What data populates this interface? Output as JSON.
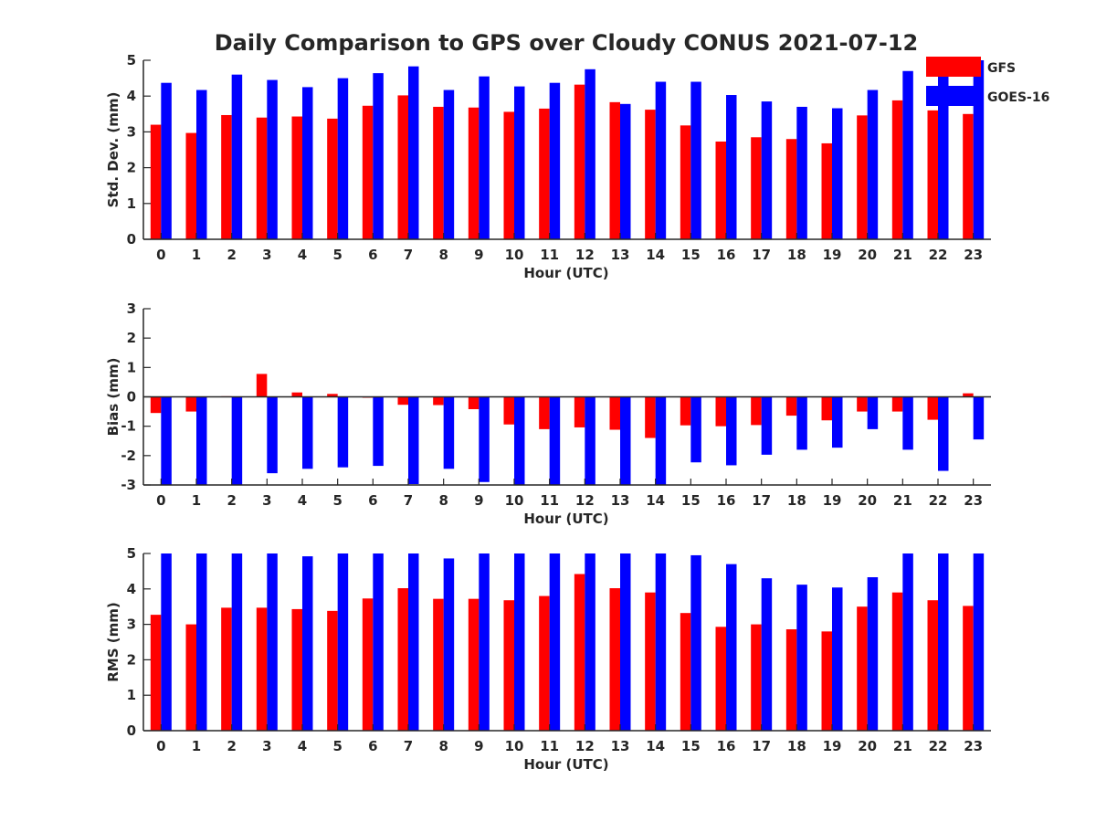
{
  "title": "Daily Comparison to GPS over Cloudy CONUS 2021-07-12",
  "colors": {
    "GFS": "#ff0000",
    "GOES-16": "#0000ff",
    "axis": "#262626"
  },
  "legend": {
    "placement": "top-right",
    "entries": [
      "GFS",
      "GOES-16"
    ]
  },
  "chart_data": [
    {
      "type": "bar",
      "ylabel": "Std. Dev. (mm)",
      "xlabel": "Hour (UTC)",
      "ylim": [
        0,
        5
      ],
      "yticks": [
        "0",
        "1",
        "2",
        "3",
        "4",
        "5"
      ],
      "categories": [
        "0",
        "1",
        "2",
        "3",
        "4",
        "5",
        "6",
        "7",
        "8",
        "9",
        "10",
        "11",
        "12",
        "13",
        "14",
        "15",
        "16",
        "17",
        "18",
        "19",
        "20",
        "21",
        "22",
        "23"
      ],
      "series": [
        {
          "name": "GFS",
          "values": [
            3.2,
            2.97,
            3.47,
            3.4,
            3.43,
            3.37,
            3.73,
            4.02,
            3.7,
            3.68,
            3.56,
            3.65,
            4.32,
            3.83,
            3.62,
            3.18,
            2.73,
            2.85,
            2.8,
            2.68,
            3.46,
            3.88,
            3.6,
            3.5
          ]
        },
        {
          "name": "GOES-16",
          "values": [
            4.37,
            4.17,
            4.6,
            4.45,
            4.25,
            4.5,
            4.64,
            4.83,
            4.17,
            4.55,
            4.27,
            4.37,
            4.75,
            3.78,
            4.4,
            4.4,
            4.03,
            3.85,
            3.7,
            3.66,
            4.17,
            4.7,
            5.0,
            5.0
          ]
        }
      ]
    },
    {
      "type": "bar",
      "ylabel": "Bias (mm)",
      "xlabel": "Hour (UTC)",
      "ylim": [
        -3,
        3
      ],
      "yticks": [
        "-3",
        "-2",
        "-1",
        "0",
        "1",
        "2",
        "3"
      ],
      "categories": [
        "0",
        "1",
        "2",
        "3",
        "4",
        "5",
        "6",
        "7",
        "8",
        "9",
        "10",
        "11",
        "12",
        "13",
        "14",
        "15",
        "16",
        "17",
        "18",
        "19",
        "20",
        "21",
        "22",
        "23"
      ],
      "series": [
        {
          "name": "GFS",
          "values": [
            -0.55,
            -0.5,
            0.02,
            0.78,
            0.15,
            0.1,
            -0.03,
            -0.27,
            -0.28,
            -0.42,
            -0.94,
            -1.1,
            -1.04,
            -1.12,
            -1.4,
            -0.97,
            -1.0,
            -0.96,
            -0.64,
            -0.8,
            -0.5,
            -0.5,
            -0.78,
            0.12
          ]
        },
        {
          "name": "GOES-16",
          "values": [
            -3.0,
            -3.0,
            -3.0,
            -2.6,
            -2.45,
            -2.4,
            -2.35,
            -2.97,
            -2.45,
            -2.9,
            -3.0,
            -3.0,
            -3.0,
            -3.0,
            -3.0,
            -2.23,
            -2.33,
            -1.97,
            -1.8,
            -1.73,
            -1.1,
            -1.8,
            -2.52,
            -1.45
          ]
        }
      ]
    },
    {
      "type": "bar",
      "ylabel": "RMS (mm)",
      "xlabel": "Hour (UTC)",
      "ylim": [
        0,
        5
      ],
      "yticks": [
        "0",
        "1",
        "2",
        "3",
        "4",
        "5"
      ],
      "categories": [
        "0",
        "1",
        "2",
        "3",
        "4",
        "5",
        "6",
        "7",
        "8",
        "9",
        "10",
        "11",
        "12",
        "13",
        "14",
        "15",
        "16",
        "17",
        "18",
        "19",
        "20",
        "21",
        "22",
        "23"
      ],
      "series": [
        {
          "name": "GFS",
          "values": [
            3.27,
            3.0,
            3.47,
            3.47,
            3.43,
            3.38,
            3.73,
            4.02,
            3.72,
            3.72,
            3.68,
            3.8,
            4.42,
            4.02,
            3.9,
            3.32,
            2.93,
            3.0,
            2.86,
            2.8,
            3.5,
            3.9,
            3.68,
            3.52
          ]
        },
        {
          "name": "GOES-16",
          "values": [
            5.0,
            5.0,
            5.0,
            5.0,
            4.92,
            5.0,
            5.0,
            5.0,
            4.86,
            5.0,
            5.0,
            5.0,
            5.0,
            5.0,
            5.0,
            4.95,
            4.7,
            4.3,
            4.12,
            4.04,
            4.33,
            5.0,
            5.0,
            5.0
          ]
        }
      ]
    }
  ]
}
